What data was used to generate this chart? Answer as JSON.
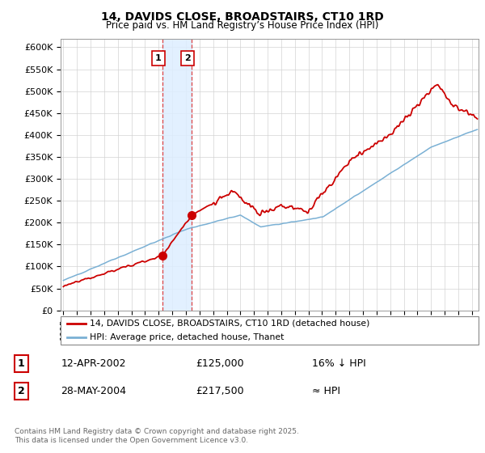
{
  "title": "14, DAVIDS CLOSE, BROADSTAIRS, CT10 1RD",
  "subtitle": "Price paid vs. HM Land Registry’s House Price Index (HPI)",
  "ylabel_ticks": [
    "£0",
    "£50K",
    "£100K",
    "£150K",
    "£200K",
    "£250K",
    "£300K",
    "£350K",
    "£400K",
    "£450K",
    "£500K",
    "£550K",
    "£600K"
  ],
  "ytick_values": [
    0,
    50000,
    100000,
    150000,
    200000,
    250000,
    300000,
    350000,
    400000,
    450000,
    500000,
    550000,
    600000
  ],
  "ylim": [
    0,
    620000
  ],
  "xlim_start": 1994.8,
  "xlim_end": 2025.5,
  "sale1_date": 2002.28,
  "sale1_price": 125000,
  "sale1_label": "1",
  "sale2_date": 2004.41,
  "sale2_price": 217500,
  "sale2_label": "2",
  "sale_color": "#cc0000",
  "hpi_color": "#7ab0d4",
  "highlight_color": "#ddeeff",
  "footnote": "Contains HM Land Registry data © Crown copyright and database right 2025.\nThis data is licensed under the Open Government Licence v3.0.",
  "legend1": "14, DAVIDS CLOSE, BROADSTAIRS, CT10 1RD (detached house)",
  "legend2": "HPI: Average price, detached house, Thanet",
  "table_row1": [
    "1",
    "12-APR-2002",
    "£125,000",
    "16% ↓ HPI"
  ],
  "table_row2": [
    "2",
    "28-MAY-2004",
    "£217,500",
    "≈ HPI"
  ]
}
